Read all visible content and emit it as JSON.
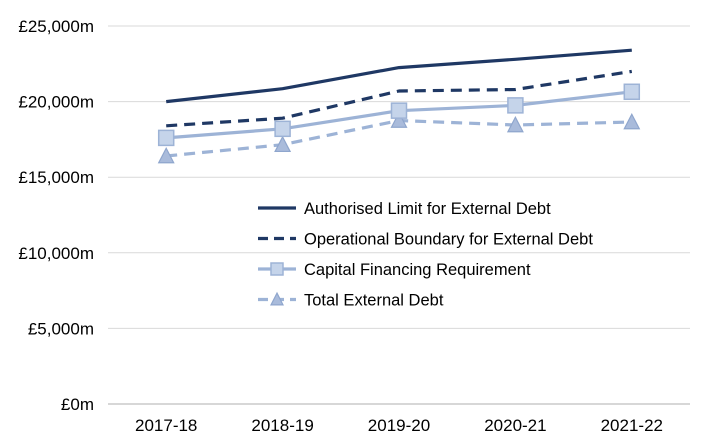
{
  "chart_data": {
    "type": "line",
    "title": "",
    "xlabel": "",
    "ylabel": "",
    "categories": [
      "2017-18",
      "2018-19",
      "2019-20",
      "2020-21",
      "2021-22"
    ],
    "ylim": [
      0,
      25000
    ],
    "yticks": [
      0,
      5000,
      10000,
      15000,
      20000,
      25000
    ],
    "ytick_labels": [
      "£0m",
      "£5,000m",
      "£10,000m",
      "£15,000m",
      "£20,000m",
      "£25,000m"
    ],
    "grid": true,
    "legend_position": "center-right",
    "series": [
      {
        "name": "Authorised Limit for External Debt",
        "values": [
          20000,
          20850,
          22250,
          22800,
          23400
        ],
        "color": "#1f3864",
        "style": "solid",
        "marker": "none"
      },
      {
        "name": "Operational Boundary for External Debt",
        "values": [
          18400,
          18900,
          20700,
          20800,
          22000
        ],
        "color": "#1f3864",
        "style": "dashed",
        "marker": "none"
      },
      {
        "name": "Capital Financing Requirement",
        "values": [
          17600,
          18200,
          19400,
          19750,
          20650
        ],
        "color": "#9db3d6",
        "style": "solid",
        "marker": "square"
      },
      {
        "name": "Total External Debt",
        "values": [
          16400,
          17150,
          18750,
          18450,
          18650
        ],
        "color": "#9db3d6",
        "style": "dashed",
        "marker": "triangle"
      }
    ]
  }
}
